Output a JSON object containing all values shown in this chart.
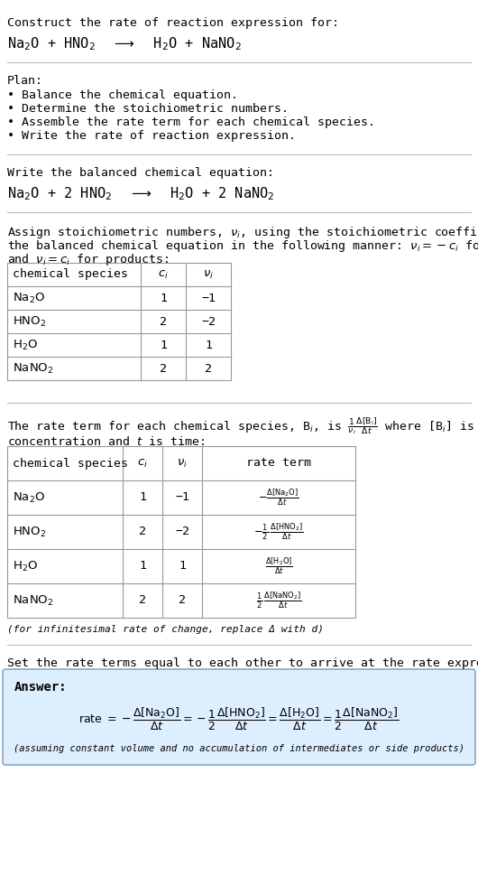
{
  "title_line1": "Construct the rate of reaction expression for:",
  "plan_header": "Plan:",
  "plan_items": [
    "• Balance the chemical equation.",
    "• Determine the stoichiometric numbers.",
    "• Assemble the rate term for each chemical species.",
    "• Write the rate of reaction expression."
  ],
  "balanced_header": "Write the balanced chemical equation:",
  "stoich_intro1": "Assign stoichiometric numbers, $\\nu_i$, using the stoichiometric coefficients, $c_i$, from",
  "stoich_intro2": "the balanced chemical equation in the following manner: $\\nu_i = -c_i$ for reactants",
  "stoich_intro3": "and $\\nu_i = c_i$ for products:",
  "table1_col_headers": [
    "chemical species",
    "$c_i$",
    "$\\nu_i$"
  ],
  "table1_rows": [
    [
      "Na$_2$O",
      "1",
      "−1"
    ],
    [
      "HNO$_2$",
      "2",
      "−2"
    ],
    [
      "H$_2$O",
      "1",
      "1"
    ],
    [
      "NaNO$_2$",
      "2",
      "2"
    ]
  ],
  "rate_intro1": "The rate term for each chemical species, B$_i$, is $\\frac{1}{\\nu_i}\\frac{\\Delta[\\mathrm{B}_i]}{\\Delta t}$ where [B$_i$] is the amount",
  "rate_intro2": "concentration and $t$ is time:",
  "table2_col_headers": [
    "chemical species",
    "$c_i$",
    "$\\nu_i$",
    "rate term"
  ],
  "table2_rows": [
    [
      "Na$_2$O",
      "1",
      "−1",
      "$-\\frac{\\Delta[\\mathrm{Na_2O}]}{\\Delta t}$"
    ],
    [
      "HNO$_2$",
      "2",
      "−2",
      "$-\\frac{1}{2}\\,\\frac{\\Delta[\\mathrm{HNO_2}]}{\\Delta t}$"
    ],
    [
      "H$_2$O",
      "1",
      "1",
      "$\\frac{\\Delta[\\mathrm{H_2O}]}{\\Delta t}$"
    ],
    [
      "NaNO$_2$",
      "2",
      "2",
      "$\\frac{1}{2}\\,\\frac{\\Delta[\\mathrm{NaNO_2}]}{\\Delta t}$"
    ]
  ],
  "infinitesimal_note": "(for infinitesimal rate of change, replace Δ with d)",
  "answer_intro": "Set the rate terms equal to each other to arrive at the rate expression:",
  "answer_label": "Answer:",
  "answer_note": "(assuming constant volume and no accumulation of intermediates or side products)",
  "answer_box_color": "#ddeeff",
  "answer_border_color": "#7799bb",
  "bg_color": "#ffffff",
  "text_color": "#000000",
  "separator_color": "#bbbbbb",
  "table_border_color": "#999999",
  "font_size": 9.5,
  "mono_font": "DejaVu Sans Mono",
  "serif_font": "DejaVu Serif"
}
